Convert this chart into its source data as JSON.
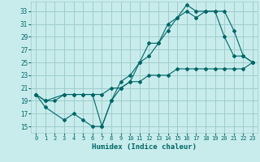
{
  "xlabel": "Humidex (Indice chaleur)",
  "bg_color": "#c8ecec",
  "grid_color": "#a0cccc",
  "line_color": "#006666",
  "xlim": [
    -0.5,
    23.5
  ],
  "ylim": [
    14,
    34.5
  ],
  "yticks": [
    15,
    17,
    19,
    21,
    23,
    25,
    27,
    29,
    31,
    33
  ],
  "xticks": [
    0,
    1,
    2,
    3,
    4,
    5,
    6,
    7,
    8,
    9,
    10,
    11,
    12,
    13,
    14,
    15,
    16,
    17,
    18,
    19,
    20,
    21,
    22,
    23
  ],
  "line1_x": [
    0,
    1,
    2,
    3,
    4,
    5,
    6,
    7,
    8,
    9,
    10,
    11,
    12,
    13,
    14,
    15,
    16,
    17,
    18,
    19,
    20,
    21,
    22,
    23
  ],
  "line1_y": [
    20,
    19,
    19,
    20,
    20,
    20,
    20,
    20,
    21,
    21,
    22,
    22,
    23,
    23,
    23,
    24,
    24,
    24,
    24,
    24,
    24,
    24,
    24,
    25
  ],
  "line2_x": [
    0,
    1,
    3,
    4,
    5,
    6,
    7,
    8,
    9,
    10,
    11,
    12,
    13,
    14,
    15,
    16,
    17,
    18,
    19,
    20,
    21,
    22,
    23
  ],
  "line2_y": [
    20,
    18,
    16,
    17,
    16,
    15,
    15,
    19,
    21,
    22,
    25,
    26,
    28,
    30,
    32,
    33,
    32,
    33,
    33,
    29,
    26,
    26,
    25
  ],
  "line3_x": [
    0,
    1,
    3,
    4,
    5,
    6,
    7,
    8,
    9,
    10,
    11,
    12,
    13,
    14,
    15,
    16,
    17,
    18,
    19,
    20,
    21,
    22,
    23
  ],
  "line3_y": [
    20,
    19,
    20,
    20,
    20,
    20,
    15,
    19,
    22,
    23,
    25,
    28,
    28,
    31,
    32,
    34,
    33,
    33,
    33,
    33,
    30,
    26,
    25
  ]
}
